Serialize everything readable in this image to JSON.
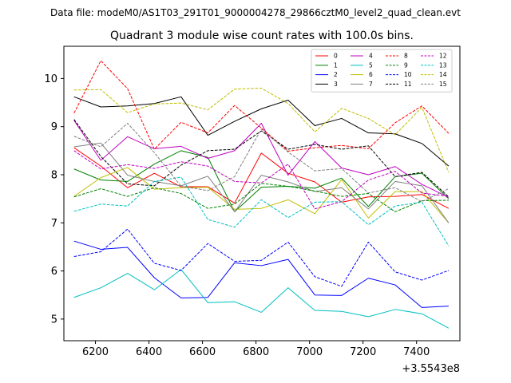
{
  "figure": {
    "suptitle": "Data file: modeM0/AS1T03_291T01_9000004278_29866cztM0_level2_quad_clean.evt"
  },
  "chart_data": {
    "type": "line",
    "title": "Quadrant 3 module wise count rates with 100.0s bins.",
    "xlabel": "",
    "ylabel": "",
    "x_offset_label": "+3.5543e8",
    "xlim": [
      6082,
      7562
    ],
    "ylim": [
      4.55,
      10.67
    ],
    "xticks": [
      6200,
      6400,
      6600,
      6800,
      7000,
      7200,
      7400
    ],
    "xtick_labels": [
      "6200",
      "6400",
      "6600",
      "6800",
      "7000",
      "7200",
      "7400"
    ],
    "yticks": [
      5,
      6,
      7,
      8,
      9,
      10
    ],
    "ytick_labels": [
      "5",
      "6",
      "7",
      "8",
      "9",
      "10"
    ],
    "grid": false,
    "legend_position": "top-right",
    "legend_columns": 4,
    "x": [
      6120,
      6220,
      6320,
      6420,
      6520,
      6620,
      6720,
      6820,
      6920,
      7020,
      7120,
      7220,
      7320,
      7420,
      7520
    ],
    "series": [
      {
        "name": "0",
        "color": "#ff0000",
        "dash": "solid",
        "values": [
          8.56,
          8.18,
          7.73,
          8.03,
          7.75,
          7.75,
          7.41,
          8.45,
          8.03,
          7.85,
          7.43,
          7.54,
          7.55,
          7.59,
          7.3
        ]
      },
      {
        "name": "1",
        "color": "#008000",
        "dash": "solid",
        "values": [
          8.12,
          7.89,
          7.86,
          8.22,
          8.5,
          8.36,
          7.23,
          7.74,
          7.76,
          7.72,
          7.93,
          7.34,
          7.96,
          8.03,
          7.5
        ]
      },
      {
        "name": "2",
        "color": "#0000ff",
        "dash": "solid",
        "values": [
          6.62,
          6.45,
          6.49,
          5.86,
          5.44,
          5.45,
          6.17,
          6.11,
          6.24,
          5.5,
          5.49,
          5.85,
          5.71,
          5.24,
          5.27
        ]
      },
      {
        "name": "3",
        "color": "#000000",
        "dash": "solid",
        "values": [
          9.62,
          9.41,
          9.43,
          9.48,
          9.62,
          8.82,
          9.11,
          9.37,
          9.55,
          9.02,
          9.17,
          8.87,
          8.85,
          8.65,
          8.18
        ]
      },
      {
        "name": "4",
        "color": "#c000c0",
        "dash": "solid",
        "values": [
          9.13,
          8.3,
          8.79,
          8.54,
          8.59,
          8.34,
          8.5,
          9.07,
          7.99,
          8.69,
          8.14,
          8.0,
          8.17,
          7.8,
          7.53
        ]
      },
      {
        "name": "5",
        "color": "#00bfbf",
        "dash": "solid",
        "values": [
          5.45,
          5.65,
          5.95,
          5.61,
          6.03,
          5.34,
          5.36,
          5.14,
          5.65,
          5.18,
          5.16,
          5.05,
          5.2,
          5.11,
          4.81
        ]
      },
      {
        "name": "6",
        "color": "#bfbf00",
        "dash": "solid",
        "values": [
          7.55,
          7.94,
          8.15,
          7.7,
          7.73,
          7.74,
          7.28,
          7.3,
          7.48,
          7.19,
          7.9,
          7.1,
          7.65,
          7.65,
          7.0
        ]
      },
      {
        "name": "7",
        "color": "#808080",
        "dash": "solid",
        "values": [
          8.58,
          8.66,
          7.99,
          7.86,
          7.77,
          7.97,
          7.23,
          7.99,
          7.85,
          7.65,
          7.73,
          7.29,
          7.86,
          7.77,
          7.0
        ]
      },
      {
        "name": "8",
        "color": "#ff0000",
        "dash": "dashed",
        "values": [
          9.28,
          10.37,
          9.79,
          8.53,
          9.09,
          8.87,
          9.44,
          8.97,
          8.49,
          8.56,
          8.61,
          8.54,
          9.08,
          9.43,
          8.86
        ]
      },
      {
        "name": "9",
        "color": "#008000",
        "dash": "dashed",
        "values": [
          7.54,
          7.71,
          7.55,
          7.73,
          7.61,
          7.3,
          7.39,
          7.82,
          7.76,
          7.66,
          7.55,
          7.61,
          7.23,
          7.46,
          7.47
        ]
      },
      {
        "name": "10",
        "color": "#0000ff",
        "dash": "dashed",
        "values": [
          6.3,
          6.4,
          6.87,
          6.16,
          6.01,
          6.57,
          6.2,
          6.22,
          6.6,
          5.88,
          5.68,
          6.6,
          5.98,
          5.81,
          6.01
        ]
      },
      {
        "name": "11",
        "color": "#000000",
        "dash": "dashed",
        "values": [
          9.15,
          8.38,
          7.81,
          7.77,
          8.2,
          8.5,
          8.53,
          8.91,
          8.53,
          8.63,
          8.53,
          8.6,
          7.96,
          8.05,
          7.54
        ]
      },
      {
        "name": "12",
        "color": "#c000c0",
        "dash": "dashed",
        "values": [
          8.5,
          8.12,
          8.21,
          8.13,
          8.27,
          8.18,
          7.86,
          7.83,
          8.22,
          7.29,
          7.44,
          7.89,
          8.07,
          7.62,
          7.55
        ]
      },
      {
        "name": "13",
        "color": "#00bfbf",
        "dash": "dashed",
        "values": [
          7.24,
          7.39,
          7.35,
          7.86,
          7.95,
          7.07,
          6.91,
          7.48,
          7.11,
          7.43,
          7.44,
          6.96,
          7.35,
          7.43,
          6.52
        ]
      },
      {
        "name": "14",
        "color": "#bfbf00",
        "dash": "dashed",
        "values": [
          9.76,
          9.77,
          9.29,
          9.47,
          9.49,
          9.35,
          9.78,
          9.8,
          9.48,
          8.89,
          9.38,
          9.17,
          8.83,
          9.4,
          8.05
        ]
      },
      {
        "name": "15",
        "color": "#808080",
        "dash": "dashed",
        "values": [
          8.8,
          8.58,
          9.07,
          8.46,
          7.76,
          7.67,
          7.96,
          8.95,
          8.47,
          8.08,
          8.13,
          7.62,
          7.73,
          7.44,
          7.71
        ]
      }
    ]
  }
}
